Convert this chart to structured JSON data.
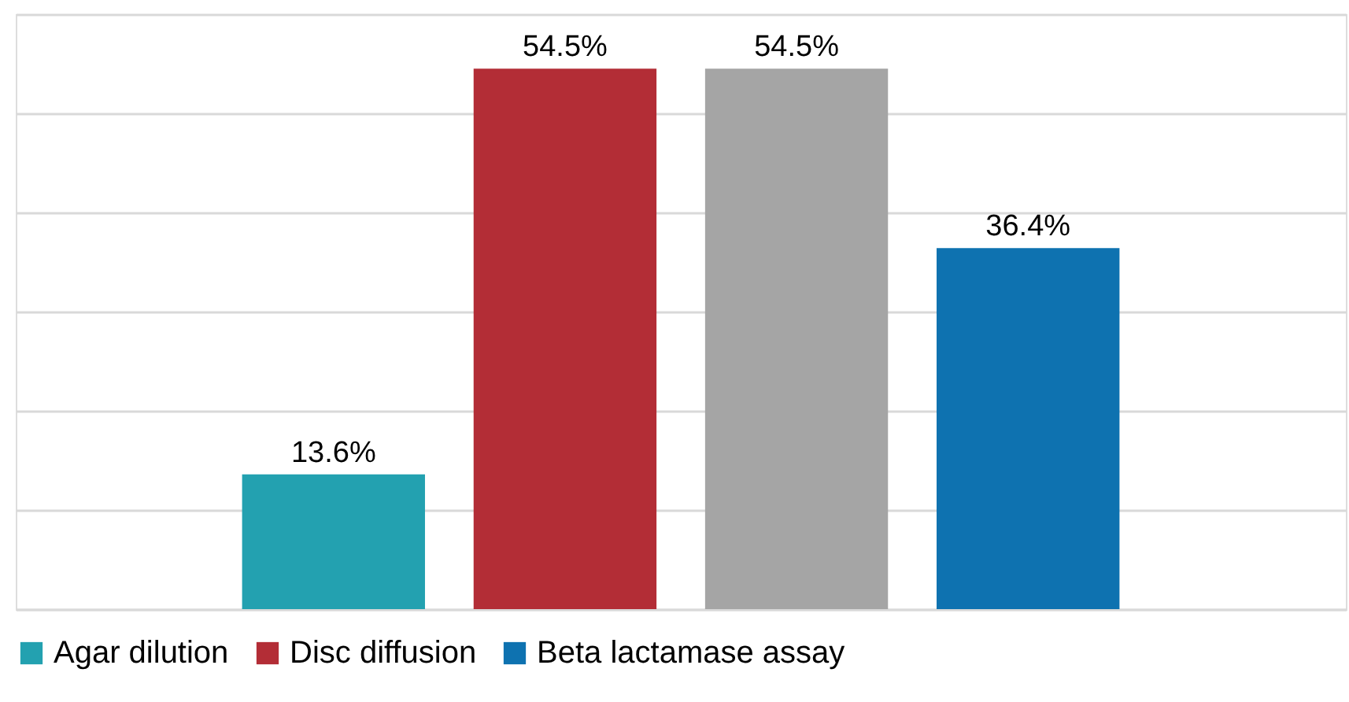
{
  "chart_data": {
    "type": "bar",
    "categories": [
      null
    ],
    "series": [
      {
        "name": "Agar dilution",
        "color": "#23a1b0",
        "values": [
          13.6
        ],
        "value_labels": [
          "13.6%"
        ]
      },
      {
        "name": "Disc diffusion",
        "color": "#b32d36",
        "values": [
          54.5
        ],
        "value_labels": [
          "54.5%"
        ]
      },
      {
        "color": "#a5a5a5",
        "values": [
          54.5
        ],
        "value_labels": [
          "54.5%"
        ]
      },
      {
        "name": "Beta lactamase assay",
        "color": "#0e72b0",
        "values": [
          36.4
        ],
        "value_labels": [
          "36.4%"
        ]
      }
    ],
    "ylim": [
      0,
      60
    ],
    "yticks": [
      {
        "value": 0,
        "label": null
      },
      {
        "value": 10,
        "label": null
      },
      {
        "value": 20,
        "label": null
      },
      {
        "value": 30,
        "label": null
      },
      {
        "value": 40,
        "label": null
      },
      {
        "value": 50,
        "label": null
      },
      {
        "value": 60,
        "label": null
      }
    ],
    "tick_labels": false,
    "grid": "y",
    "legend": "bottom"
  }
}
